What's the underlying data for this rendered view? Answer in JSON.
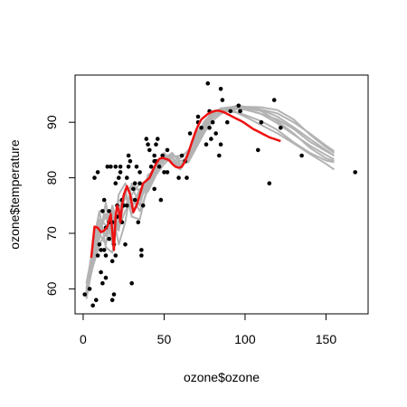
{
  "chart_data": {
    "type": "scatter",
    "xlabel": "ozone$ozone",
    "ylabel": "ozone$temperature",
    "xlim": [
      -5,
      176
    ],
    "ylim": [
      55.5,
      98.5
    ],
    "x_ticks": [
      0,
      50,
      100,
      150
    ],
    "y_ticks": [
      60,
      70,
      80,
      90
    ],
    "x_tick_labels": [
      "0",
      "50",
      "100",
      "150"
    ],
    "y_tick_labels": [
      "60",
      "70",
      "80",
      "90"
    ],
    "grid": false,
    "colors": {
      "points": "#000000",
      "bootstrap": "#b3b3b3",
      "fit": "#ee1111"
    },
    "points": {
      "x": [
        1,
        4,
        6,
        7,
        8,
        9,
        9,
        10,
        11,
        11,
        12,
        12,
        13,
        13,
        14,
        14,
        14,
        15,
        16,
        16,
        16,
        17,
        18,
        18,
        18,
        19,
        19,
        20,
        20,
        20,
        21,
        21,
        22,
        23,
        23,
        24,
        24,
        25,
        26,
        27,
        27,
        28,
        28,
        29,
        30,
        31,
        32,
        32,
        33,
        34,
        35,
        35,
        36,
        36,
        37,
        39,
        40,
        41,
        42,
        44,
        44,
        44,
        45,
        45,
        46,
        47,
        48,
        49,
        50,
        52,
        52,
        59,
        61,
        63,
        64,
        66,
        71,
        71,
        73,
        76,
        77,
        78,
        78,
        79,
        80,
        82,
        84,
        85,
        85,
        86,
        89,
        91,
        96,
        97,
        108,
        110,
        115,
        118,
        122,
        135,
        168
      ],
      "y": [
        59,
        60,
        57,
        80,
        58,
        81,
        66,
        68,
        63,
        67,
        61,
        74,
        76,
        67,
        62,
        66,
        71,
        82,
        72,
        74,
        69,
        82,
        58,
        65,
        72,
        59,
        68,
        79,
        82,
        66,
        75,
        73,
        80,
        81,
        82,
        72,
        76,
        75,
        68,
        80,
        75,
        82,
        84,
        83,
        61,
        78,
        76,
        79,
        82,
        72,
        81,
        79,
        66,
        67,
        75,
        87,
        86,
        85,
        82,
        83,
        84,
        78,
        83,
        86,
        87,
        82,
        76,
        84,
        81,
        81,
        85,
        80,
        84,
        83,
        80,
        88,
        91,
        90,
        89,
        86,
        97,
        92,
        89,
        87,
        90,
        88,
        84,
        86,
        96,
        94,
        90,
        92,
        93,
        92,
        85,
        90,
        79,
        94,
        89,
        84,
        81
      ]
    },
    "fit_curve": {
      "name": "fit",
      "x": [
        5,
        7,
        9,
        11,
        13,
        15,
        17,
        19,
        20,
        21,
        22,
        23,
        24,
        25,
        27,
        29,
        31,
        33,
        35,
        37,
        39,
        41,
        43,
        45,
        47,
        49,
        51,
        53,
        55,
        57,
        59,
        61,
        63,
        65,
        67,
        69,
        71,
        73,
        75,
        77,
        79,
        81,
        83,
        85,
        87,
        89,
        91,
        93,
        95,
        97,
        99,
        101,
        103,
        105,
        107,
        109,
        111,
        113,
        115,
        117,
        119,
        122
      ],
      "y": [
        65.6,
        71.2,
        71,
        70.2,
        70.5,
        71.2,
        73.5,
        67,
        73,
        75,
        74.2,
        72,
        75,
        76.8,
        78.5,
        77,
        73.8,
        75,
        77,
        79,
        79.5,
        80,
        81.3,
        82.5,
        83.4,
        83.6,
        83.4,
        83.2,
        82.5,
        82,
        81.8,
        82,
        83,
        84.5,
        86.3,
        88,
        89.4,
        90.5,
        91,
        91.5,
        91.8,
        92,
        92.1,
        92,
        91.8,
        91.5,
        91.2,
        90.9,
        90.6,
        90.3,
        90,
        89.6,
        89.2,
        88.8,
        88.5,
        88.2,
        87.9,
        87.6,
        87.3,
        87.1,
        86.9,
        86.6
      ]
    },
    "bootstrap_curves": [
      {
        "x": [
          2,
          6,
          10,
          14,
          18,
          22,
          26,
          30,
          35,
          40,
          45,
          50,
          55,
          60,
          65,
          70,
          75,
          80,
          85,
          90,
          95,
          100,
          110,
          120,
          130,
          140,
          150,
          155
        ],
        "y": [
          58.5,
          66,
          72,
          69.5,
          73,
          70.5,
          77,
          73.5,
          76.5,
          80,
          82.5,
          84,
          83.7,
          82.2,
          84.5,
          88,
          90,
          92,
          92.3,
          92.5,
          92.6,
          92.5,
          91.5,
          89.8,
          87.8,
          85.8,
          84.1,
          83.3
        ]
      },
      {
        "x": [
          2,
          6,
          10,
          14,
          18,
          22,
          26,
          30,
          35,
          40,
          45,
          50,
          55,
          60,
          65,
          70,
          75,
          80,
          85,
          90,
          95,
          100,
          110,
          120,
          130,
          140,
          150,
          155
        ],
        "y": [
          59,
          65,
          71,
          73,
          70,
          76,
          75,
          77,
          79,
          78.5,
          82,
          84,
          83,
          82,
          83.2,
          86,
          89,
          91,
          92,
          92.2,
          92.5,
          92.6,
          92.2,
          91,
          89.1,
          87,
          85,
          84
        ]
      },
      {
        "x": [
          2,
          6,
          10,
          14,
          18,
          22,
          26,
          30,
          35,
          40,
          45,
          50,
          55,
          60,
          65,
          70,
          75,
          80,
          85,
          90,
          95,
          100,
          110,
          120,
          130,
          140,
          150,
          155
        ],
        "y": [
          60,
          68,
          74,
          67.5,
          66.5,
          74,
          78,
          73,
          72.5,
          79,
          81.5,
          83,
          84,
          83.5,
          85,
          87.2,
          89.5,
          91.3,
          91.8,
          92,
          91.7,
          91,
          89.5,
          88,
          86.2,
          84.3,
          82.5,
          81.5
        ]
      },
      {
        "x": [
          2,
          6,
          10,
          14,
          18,
          22,
          26,
          30,
          35,
          40,
          45,
          50,
          55,
          60,
          65,
          70,
          75,
          80,
          85,
          90,
          95,
          100,
          110,
          120,
          130,
          140,
          150,
          155
        ],
        "y": [
          58.2,
          64.5,
          69,
          75.5,
          68.5,
          77,
          79,
          76.5,
          74,
          78,
          81,
          83.5,
          84.5,
          82.5,
          82.8,
          85.5,
          88.2,
          90.3,
          91.5,
          92.1,
          92.4,
          92.3,
          91.5,
          90.5,
          88.8,
          86.5,
          84.8,
          84
        ]
      },
      {
        "x": [
          2,
          6,
          10,
          14,
          18,
          22,
          26,
          30,
          35,
          40,
          45,
          50,
          55,
          60,
          65,
          70,
          75,
          80,
          85,
          90,
          95,
          100,
          110,
          120,
          130,
          140,
          150,
          155
        ],
        "y": [
          61,
          67,
          70,
          68,
          74,
          68,
          72,
          79,
          77.5,
          79.5,
          82.5,
          83.5,
          83.5,
          82,
          83.8,
          86.8,
          89,
          91,
          92,
          92.6,
          93,
          92.8,
          92.3,
          91.6,
          90,
          88,
          85.8,
          84.8
        ]
      },
      {
        "x": [
          2,
          6,
          10,
          14,
          18,
          22,
          26,
          30,
          35,
          40,
          45,
          50,
          55,
          60,
          65,
          70,
          75,
          80,
          85,
          90,
          95,
          100,
          110,
          120,
          130,
          140,
          150,
          155
        ],
        "y": [
          59.5,
          66.5,
          72.5,
          71.5,
          71,
          73.5,
          76.5,
          74.5,
          78,
          77.5,
          80.5,
          82.5,
          83.8,
          84,
          84.6,
          87.5,
          90.2,
          91.8,
          92.4,
          92.3,
          91.8,
          91.3,
          90.2,
          88.6,
          86.4,
          84.5,
          83.1,
          82.8
        ]
      },
      {
        "x": [
          2,
          6,
          10,
          14,
          18,
          22,
          26,
          30,
          35,
          40,
          45,
          50,
          55,
          60,
          65,
          70,
          75,
          80,
          85,
          90,
          95,
          100,
          110,
          120,
          130,
          140,
          150,
          155
        ],
        "y": [
          58.8,
          65.5,
          70,
          73.5,
          68,
          72,
          77.5,
          78.5,
          75,
          80.5,
          81.5,
          84.5,
          82.8,
          81.5,
          84,
          86.5,
          89.5,
          91.5,
          92.5,
          92.7,
          92.8,
          92.7,
          92,
          90.2,
          88,
          85.4,
          83.5,
          83
        ]
      },
      {
        "x": [
          2,
          6,
          10,
          14,
          18,
          22,
          26,
          30,
          35,
          40,
          45,
          50,
          55,
          60,
          65,
          70,
          75,
          80,
          85,
          90,
          95,
          100,
          110,
          120,
          130,
          140,
          150,
          155
        ],
        "y": [
          59.2,
          64,
          68,
          70,
          75,
          71,
          74,
          76,
          76,
          78.8,
          81.8,
          83.2,
          84.2,
          83,
          83.5,
          86,
          88.8,
          90.8,
          91.9,
          92.4,
          92.6,
          92.8,
          92.7,
          92.2,
          90.5,
          87.8,
          85.5,
          84.5
        ]
      }
    ]
  }
}
